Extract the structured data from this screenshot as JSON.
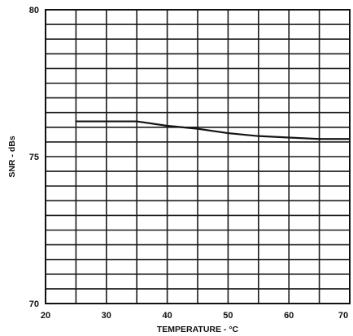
{
  "chart_data": {
    "type": "line",
    "title": "",
    "xlabel": "TEMPERATURE - °C",
    "ylabel": "SNR - dBs",
    "xlim": [
      20,
      70
    ],
    "ylim": [
      70,
      80
    ],
    "x_tick_values": [
      20,
      30,
      40,
      50,
      60,
      70
    ],
    "x_tick_labels": [
      "20",
      "30",
      "40",
      "50",
      "60",
      "70"
    ],
    "y_tick_values": [
      70,
      75,
      80
    ],
    "y_tick_labels": [
      "70",
      "75",
      "80"
    ],
    "x_grid_step": 5,
    "y_grid_step": 0.5,
    "grid": true,
    "series": [
      {
        "x": [
          25,
          30,
          35,
          40,
          45,
          50,
          55,
          60,
          65,
          70
        ],
        "y": [
          76.2,
          76.2,
          76.2,
          76.05,
          75.95,
          75.8,
          75.7,
          75.65,
          75.6,
          75.6
        ]
      }
    ]
  }
}
